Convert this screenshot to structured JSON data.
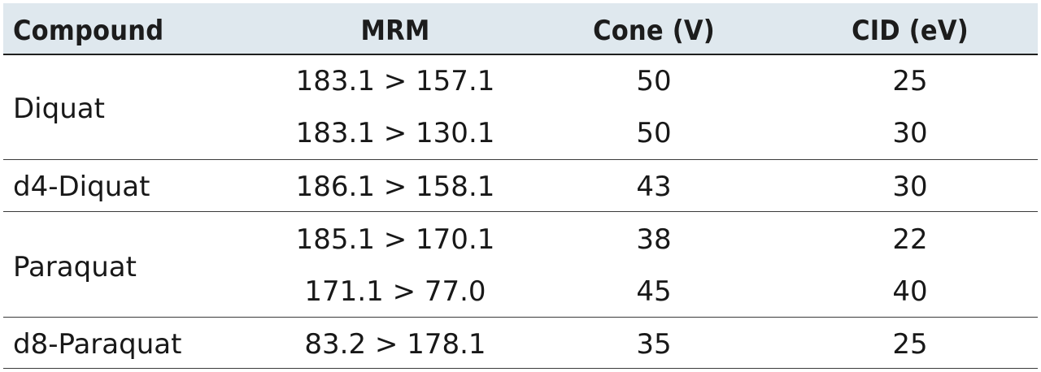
{
  "table": {
    "headers": {
      "compound": "Compound",
      "mrm": "MRM",
      "cone": "Cone (V)",
      "cid": "CID (eV)"
    },
    "groups": [
      {
        "compound": "Diquat",
        "rows": [
          {
            "mrm": "183.1 > 157.1",
            "cone": "50",
            "cid": "25"
          },
          {
            "mrm": "183.1 > 130.1",
            "cone": "50",
            "cid": "30"
          }
        ]
      },
      {
        "compound": "d4-Diquat",
        "rows": [
          {
            "mrm": "186.1 > 158.1",
            "cone": "43",
            "cid": "30"
          }
        ]
      },
      {
        "compound": "Paraquat",
        "rows": [
          {
            "mrm": "185.1 > 170.1",
            "cone": "38",
            "cid": "22"
          },
          {
            "mrm": "171.1 > 77.0",
            "cone": "45",
            "cid": "40"
          }
        ]
      },
      {
        "compound": "d8-Paraquat",
        "rows": [
          {
            "mrm": "83.2 > 178.1",
            "cone": "35",
            "cid": "25"
          }
        ]
      }
    ]
  }
}
